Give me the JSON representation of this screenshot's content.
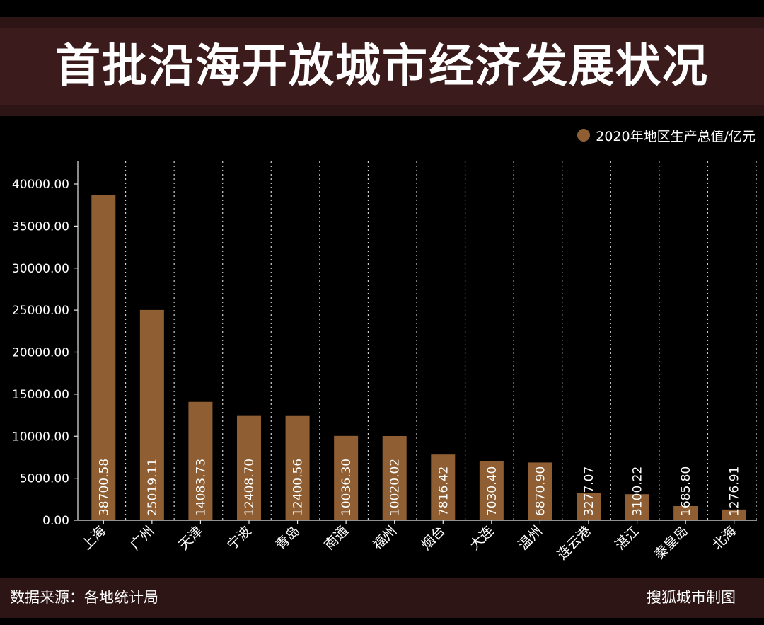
{
  "title": "首批沿海开放城市经济发展状况",
  "legend": {
    "label": "2020年地区生产总值/亿元"
  },
  "footer": {
    "source": "数据来源：各地统计局",
    "credit": "搜狐城市制图"
  },
  "colors": {
    "background": "#000000",
    "band": "#2e1515",
    "bar": "#8f5e33",
    "text": "#ffffff"
  },
  "chart_data": {
    "type": "bar",
    "title": "首批沿海开放城市经济发展状况",
    "xlabel": "",
    "ylabel": "",
    "ylim": [
      0,
      40000
    ],
    "yticks": [
      "0.00",
      "5000.00",
      "10000.00",
      "15000.00",
      "20000.00",
      "25000.00",
      "30000.00",
      "35000.00",
      "40000.00"
    ],
    "categories": [
      "上海",
      "广州",
      "天津",
      "宁波",
      "青岛",
      "南通",
      "福州",
      "烟台",
      "大连",
      "温州",
      "连云港",
      "湛江",
      "秦皇岛",
      "北海"
    ],
    "series": [
      {
        "name": "2020年地区生产总值/亿元",
        "values": [
          38700.58,
          25019.11,
          14083.73,
          12408.7,
          12400.56,
          10036.3,
          10020.02,
          7816.42,
          7030.4,
          6870.9,
          3277.07,
          3100.22,
          1685.8,
          1276.91
        ],
        "labels": [
          "38700.58",
          "25019.11",
          "14083.73",
          "12408.70",
          "12400.56",
          "10036.30",
          "10020.02",
          "7816.42",
          "7030.40",
          "6870.90",
          "3277.07",
          "3100.22",
          "1685.80",
          "1276.91"
        ]
      }
    ],
    "grid": "vertical-dotted",
    "legend_position": "top-right"
  }
}
